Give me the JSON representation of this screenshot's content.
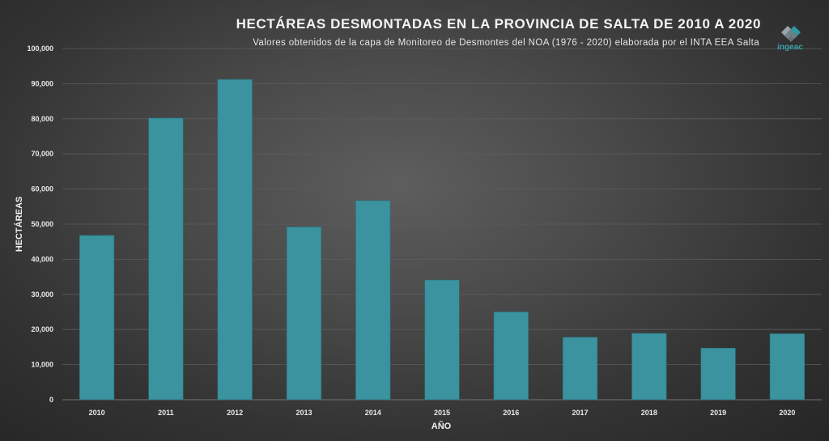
{
  "title": "HECTÁREAS DESMONTADAS  EN LA PROVINCIA DE SALTA DE 2010 A 2020",
  "subtitle": "Valores obtenidos  de la capa de Monitoreo  de Desmontes del NOA (1976 - 2020) elaborada por el INTA EEA Salta",
  "logo": {
    "text": "ingeac",
    "icon": "ingeac-diamond-logo"
  },
  "colors": {
    "bar": "#3a939e",
    "grid": "#5c5c5c",
    "axis_text": "#e8e8e8"
  },
  "chart_data": {
    "type": "bar",
    "xlabel": "AÑO",
    "ylabel": "HECTÁREAS",
    "categories": [
      "2010",
      "2011",
      "2012",
      "2013",
      "2014",
      "2015",
      "2016",
      "2017",
      "2018",
      "2019",
      "2020"
    ],
    "values": [
      46800,
      80200,
      91200,
      49200,
      56700,
      34100,
      25000,
      17800,
      18900,
      14700,
      18800
    ],
    "ylim": [
      0,
      100000
    ],
    "yticks": [
      "0",
      "10,000",
      "20,000",
      "30,000",
      "40,000",
      "50,000",
      "60,000",
      "70,000",
      "80,000",
      "90,000",
      "100,000"
    ],
    "grid": true,
    "legend": "none"
  }
}
